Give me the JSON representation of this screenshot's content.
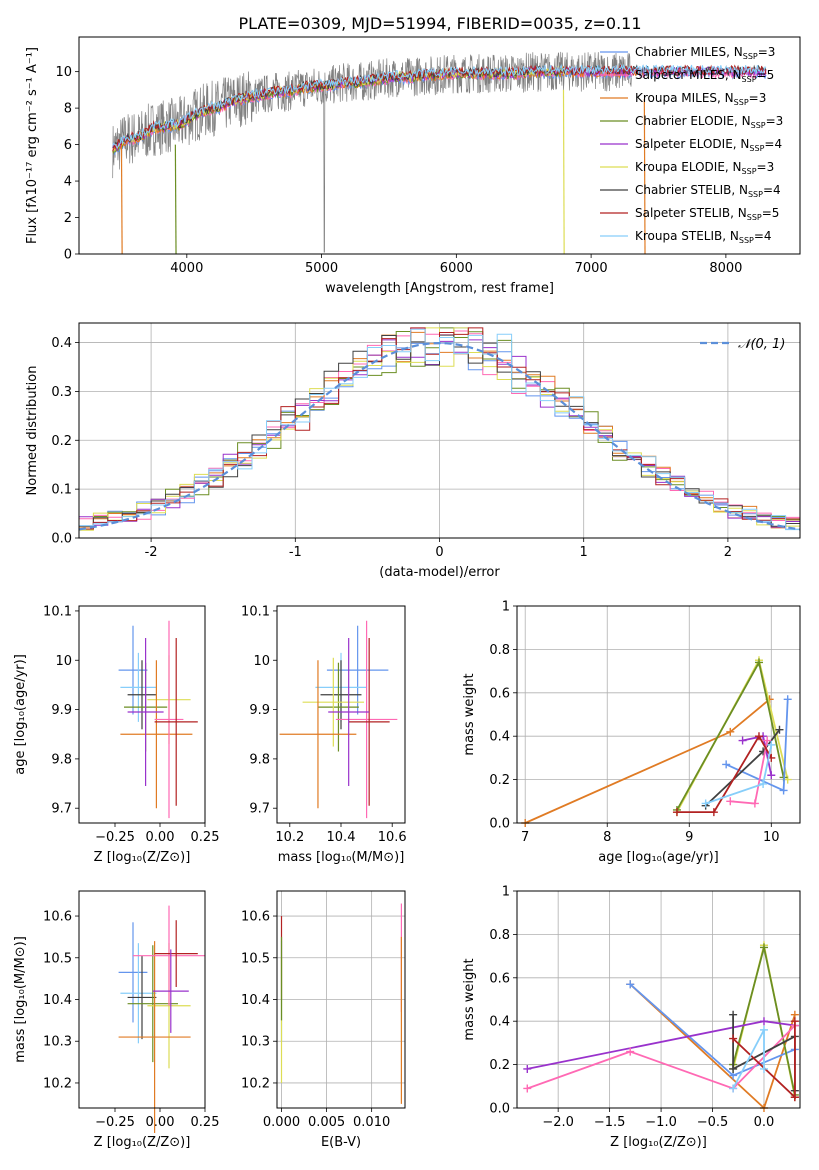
{
  "figure_title": "PLATE=0309, MJD=51994, FIBERID=0035, z=0.11",
  "legend_entries": [
    {
      "label": "Chabrier MILES, N",
      "sub": "SSP",
      "tail": "=3",
      "color": "#6495ed"
    },
    {
      "label": "Salpeter MILES, N",
      "sub": "SSP",
      "tail": "=5",
      "color": "#ff69b4"
    },
    {
      "label": "Kroupa MILES, N",
      "sub": "SSP",
      "tail": "=3",
      "color": "#e07b24"
    },
    {
      "label": "Chabrier ELODIE, N",
      "sub": "SSP",
      "tail": "=3",
      "color": "#6b8e23"
    },
    {
      "label": "Salpeter ELODIE, N",
      "sub": "SSP",
      "tail": "=4",
      "color": "#9932cc"
    },
    {
      "label": "Kroupa ELODIE, N",
      "sub": "SSP",
      "tail": "=3",
      "color": "#dddd55"
    },
    {
      "label": "Chabrier STELIB, N",
      "sub": "SSP",
      "tail": "=4",
      "color": "#404040"
    },
    {
      "label": "Salpeter STELIB, N",
      "sub": "SSP",
      "tail": "=5",
      "color": "#b22222"
    },
    {
      "label": "Kroupa STELIB, N",
      "sub": "SSP",
      "tail": "=4",
      "color": "#87cefa"
    }
  ],
  "chart_data": [
    {
      "id": "spectrum",
      "type": "line",
      "xlabel": "wavelength [Angstrom, rest frame]",
      "ylabel": "Flux [fλ10⁻¹⁷ erg cm⁻² s⁻¹ A⁻¹]",
      "xlim": [
        3200,
        8550
      ],
      "ylim": [
        0,
        11.9
      ],
      "xticks": [
        4000,
        5000,
        6000,
        7000,
        8000
      ],
      "yticks": [
        0,
        2,
        4,
        6,
        8,
        10
      ],
      "grid": false,
      "legend_position": "right",
      "series_model": {
        "x": [
          3450,
          3550,
          3650,
          3750,
          3850,
          3950,
          4050,
          4150,
          4250,
          4350,
          4450,
          4550,
          4650,
          4750,
          4850,
          4950,
          5050,
          5150,
          5250,
          5350,
          5450,
          5550,
          5650,
          5750,
          5850,
          5950,
          6050,
          6150,
          6250,
          6350,
          6450,
          6550,
          6650,
          6750,
          6850,
          6950,
          7050,
          7150,
          7250,
          7350,
          7450,
          7550,
          7650,
          7750,
          7850,
          7950,
          8050,
          8150,
          8300
        ],
        "y": [
          5.7,
          6.3,
          6.4,
          6.9,
          7.0,
          7.1,
          7.6,
          7.9,
          8.1,
          8.4,
          8.6,
          8.7,
          8.9,
          8.9,
          9.1,
          9.2,
          9.2,
          9.4,
          9.4,
          9.5,
          9.6,
          9.7,
          9.7,
          9.8,
          9.8,
          9.9,
          9.9,
          9.9,
          9.9,
          9.9,
          9.9,
          10.0,
          10.0,
          10.0,
          10.0,
          10.0,
          10.0,
          10.0,
          10.0,
          10.0,
          10.0,
          10.0,
          10.0,
          10.0,
          10.0,
          10.0,
          10.0,
          10.0,
          10.0
        ]
      },
      "series_data": {
        "x_range": [
          3450,
          7300
        ],
        "noise": 1.1,
        "note": "observed spectrum (gray)"
      },
      "dips": [
        {
          "x": 3520,
          "y": 0
        },
        {
          "x": 3920,
          "y": 0
        },
        {
          "x": 5020,
          "y": 0
        },
        {
          "x": 6800,
          "y": 0
        },
        {
          "x": 7400,
          "y": 0
        }
      ]
    },
    {
      "id": "residuals",
      "type": "histogram",
      "xlabel": "(data-model)/error",
      "ylabel": "Normed distribution",
      "xlim": [
        -2.5,
        2.5
      ],
      "ylim": [
        0,
        0.44
      ],
      "xticks": [
        -2,
        -1,
        0,
        1,
        2
      ],
      "yticks": [
        0.0,
        0.1,
        0.2,
        0.3,
        0.4
      ],
      "grid": true,
      "legend": {
        "label": "𝒩(0, 1)",
        "position": "top-right"
      },
      "bin_width": 0.1,
      "reference_curve": "gaussian(0,1)"
    },
    {
      "id": "age_vs_Z",
      "type": "errorbar",
      "xlabel": "Z [log₁₀(Z/Z⊙)]",
      "ylabel": "age  [log₁₀(age/yr)]",
      "xlim": [
        -0.45,
        0.25
      ],
      "ylim": [
        9.67,
        10.11
      ],
      "xticks": [
        -0.25,
        0.0,
        0.25
      ],
      "xticklabels": [
        "−0.25",
        "0.00",
        "0.25"
      ],
      "yticks": [
        9.7,
        9.8,
        9.9,
        10.0,
        10.1
      ],
      "points": [
        {
          "x": -0.15,
          "xerr": 0.08,
          "y": 9.98,
          "yerr": 0.09,
          "color": "#6495ed"
        },
        {
          "x": -0.12,
          "xerr": 0.1,
          "y": 9.945,
          "yerr": 0.07,
          "color": "#87cefa"
        },
        {
          "x": -0.1,
          "xerr": 0.08,
          "y": 9.93,
          "yerr": 0.07,
          "color": "#404040"
        },
        {
          "x": -0.08,
          "xerr": 0.12,
          "y": 9.905,
          "yerr": 0.09,
          "color": "#6b8e23"
        },
        {
          "x": 0.05,
          "xerr": 0.12,
          "y": 9.92,
          "yerr": 0.09,
          "color": "#dddd55"
        },
        {
          "x": -0.02,
          "xerr": 0.2,
          "y": 9.85,
          "yerr": 0.15,
          "color": "#e07b24"
        },
        {
          "x": 0.05,
          "xerr": 0.08,
          "y": 9.88,
          "yerr": 0.2,
          "color": "#ff69b4"
        },
        {
          "x": 0.09,
          "xerr": 0.12,
          "y": 9.875,
          "yerr": 0.17,
          "color": "#b22222"
        },
        {
          "x": -0.08,
          "xerr": 0.1,
          "y": 9.895,
          "yerr": 0.15,
          "color": "#9932cc"
        }
      ]
    },
    {
      "id": "age_vs_mass",
      "type": "errorbar",
      "xlabel": "mass [log₁₀(M/M⊙)]",
      "ylabel": "",
      "xlim": [
        10.15,
        10.65
      ],
      "ylim": [
        9.67,
        10.11
      ],
      "xticks": [
        10.2,
        10.4,
        10.6
      ],
      "yticks": [
        9.7,
        9.8,
        9.9,
        10.0,
        10.1
      ],
      "points": [
        {
          "x": 10.465,
          "xerr": 0.12,
          "y": 9.98,
          "yerr": 0.09,
          "color": "#6495ed"
        },
        {
          "x": 10.4,
          "xerr": 0.1,
          "y": 9.945,
          "yerr": 0.07,
          "color": "#87cefa"
        },
        {
          "x": 10.4,
          "xerr": 0.08,
          "y": 9.93,
          "yerr": 0.07,
          "color": "#404040"
        },
        {
          "x": 10.39,
          "xerr": 0.08,
          "y": 9.905,
          "yerr": 0.09,
          "color": "#6b8e23"
        },
        {
          "x": 10.37,
          "xerr": 0.12,
          "y": 9.915,
          "yerr": 0.09,
          "color": "#dddd55"
        },
        {
          "x": 10.31,
          "xerr": 0.15,
          "y": 9.85,
          "yerr": 0.15,
          "color": "#e07b24"
        },
        {
          "x": 10.5,
          "xerr": 0.12,
          "y": 9.88,
          "yerr": 0.2,
          "color": "#ff69b4"
        },
        {
          "x": 10.51,
          "xerr": 0.08,
          "y": 9.875,
          "yerr": 0.17,
          "color": "#b22222"
        },
        {
          "x": 10.43,
          "xerr": 0.08,
          "y": 9.895,
          "yerr": 0.15,
          "color": "#9932cc"
        }
      ]
    },
    {
      "id": "mass_weight_vs_age",
      "type": "line",
      "xlabel": "age  [log₁₀(age/yr)]",
      "ylabel": "mass weight",
      "xlim": [
        6.9,
        10.35
      ],
      "ylim": [
        0,
        1.0
      ],
      "xticks": [
        7,
        8,
        9,
        10
      ],
      "yticks": [
        0.0,
        0.2,
        0.4,
        0.6,
        0.8,
        1.0
      ],
      "grid": true,
      "series": [
        {
          "color": "#e07b24",
          "x": [
            7.0,
            9.5,
            9.98
          ],
          "y": [
            0.0,
            0.42,
            0.57
          ]
        },
        {
          "color": "#dddd55",
          "x": [
            8.85,
            9.85,
            10.2
          ],
          "y": [
            0.05,
            0.75,
            0.2
          ]
        },
        {
          "color": "#6b8e23",
          "x": [
            8.85,
            9.85,
            10.15
          ],
          "y": [
            0.06,
            0.74,
            0.21
          ]
        },
        {
          "color": "#6495ed",
          "x": [
            9.45,
            10.15,
            10.2
          ],
          "y": [
            0.27,
            0.15,
            0.57
          ]
        },
        {
          "color": "#404040",
          "x": [
            9.2,
            9.9,
            10.1
          ],
          "y": [
            0.08,
            0.33,
            0.43
          ]
        },
        {
          "color": "#9932cc",
          "x": [
            9.65,
            9.9,
            10.0
          ],
          "y": [
            0.38,
            0.4,
            0.22
          ]
        },
        {
          "color": "#ff69b4",
          "x": [
            9.5,
            9.8,
            9.95
          ],
          "y": [
            0.1,
            0.09,
            0.38
          ]
        },
        {
          "color": "#b22222",
          "x": [
            8.85,
            9.3,
            9.85,
            10.0
          ],
          "y": [
            0.05,
            0.05,
            0.4,
            0.3
          ]
        },
        {
          "color": "#87cefa",
          "x": [
            9.2,
            9.9,
            10.0
          ],
          "y": [
            0.09,
            0.18,
            0.36
          ]
        }
      ]
    },
    {
      "id": "mass_vs_Z",
      "type": "errorbar",
      "xlabel": "Z [log₁₀(Z/Z⊙)]",
      "ylabel": "mass [log₁₀(M/M⊙)]",
      "xlim": [
        -0.45,
        0.25
      ],
      "ylim": [
        10.14,
        10.66
      ],
      "xticks": [
        -0.25,
        0.0,
        0.25
      ],
      "xticklabels": [
        "−0.25",
        "0.00",
        "0.25"
      ],
      "yticks": [
        10.2,
        10.3,
        10.4,
        10.5,
        10.6
      ],
      "points": [
        {
          "x": -0.15,
          "xerr": 0.08,
          "y": 10.465,
          "yerr": 0.12,
          "color": "#6495ed"
        },
        {
          "x": -0.12,
          "xerr": 0.1,
          "y": 10.415,
          "yerr": 0.12,
          "color": "#87cefa"
        },
        {
          "x": -0.1,
          "xerr": 0.08,
          "y": 10.405,
          "yerr": 0.1,
          "color": "#404040"
        },
        {
          "x": -0.04,
          "xerr": 0.14,
          "y": 10.39,
          "yerr": 0.14,
          "color": "#6b8e23"
        },
        {
          "x": 0.05,
          "xerr": 0.12,
          "y": 10.385,
          "yerr": 0.15,
          "color": "#dddd55"
        },
        {
          "x": -0.03,
          "xerr": 0.2,
          "y": 10.31,
          "yerr": 0.23,
          "color": "#e07b24"
        },
        {
          "x": 0.05,
          "xerr": 0.2,
          "y": 10.505,
          "yerr": 0.12,
          "color": "#ff69b4"
        },
        {
          "x": 0.09,
          "xerr": 0.12,
          "y": 10.51,
          "yerr": 0.08,
          "color": "#b22222"
        },
        {
          "x": 0.06,
          "xerr": 0.1,
          "y": 10.42,
          "yerr": 0.1,
          "color": "#9932cc"
        }
      ]
    },
    {
      "id": "mass_vs_ebv",
      "type": "errorbar",
      "xlabel": "E(B-V)",
      "ylabel": "",
      "xlim": [
        -0.0005,
        0.0137
      ],
      "ylim": [
        10.14,
        10.66
      ],
      "xticks": [
        0.0,
        0.005,
        0.01
      ],
      "xticklabels": [
        "0.000",
        "0.005",
        "0.010"
      ],
      "yticks": [
        10.2,
        10.3,
        10.4,
        10.5,
        10.6
      ],
      "points": [
        {
          "x": 0.0,
          "xerr": 0,
          "y": 10.5,
          "yerr": 0.1,
          "color": "#b22222"
        },
        {
          "x": 0.0,
          "xerr": 0,
          "y": 10.42,
          "yerr": 0.12,
          "color": "#87cefa"
        },
        {
          "x": 0.0,
          "xerr": 0,
          "y": 10.35,
          "yerr": 0.15,
          "color": "#dddd55"
        },
        {
          "x": 0.0,
          "xerr": 0,
          "y": 10.45,
          "yerr": 0.1,
          "color": "#6b8e23"
        },
        {
          "x": 0.0133,
          "xerr": 0,
          "y": 10.5,
          "yerr": 0.13,
          "color": "#ff69b4"
        },
        {
          "x": 0.0133,
          "xerr": 0,
          "y": 10.35,
          "yerr": 0.2,
          "color": "#e07b24"
        }
      ]
    },
    {
      "id": "mass_weight_vs_Z",
      "type": "line",
      "xlabel": "Z [log₁₀(Z/Z⊙)]",
      "ylabel": "mass weight",
      "xlim": [
        -2.4,
        0.35
      ],
      "ylim": [
        0,
        1.0
      ],
      "xticks": [
        -2.0,
        -1.5,
        -1.0,
        -0.5,
        0.0
      ],
      "xticklabels": [
        "−2.0",
        "−1.5",
        "−1.0",
        "−0.5",
        "0.0"
      ],
      "yticks": [
        0.0,
        0.2,
        0.4,
        0.6,
        0.8,
        1.0
      ],
      "grid": true,
      "series": [
        {
          "color": "#e07b24",
          "x": [
            -1.3,
            0.0,
            0.3
          ],
          "y": [
            0.57,
            0.0,
            0.43
          ]
        },
        {
          "color": "#6495ed",
          "x": [
            -1.3,
            -0.3,
            0.3
          ],
          "y": [
            0.57,
            0.15,
            0.27
          ]
        },
        {
          "color": "#dddd55",
          "x": [
            -0.3,
            0.0,
            0.3
          ],
          "y": [
            0.18,
            0.75,
            0.05
          ]
        },
        {
          "color": "#6b8e23",
          "x": [
            -0.3,
            0.0,
            0.3
          ],
          "y": [
            0.2,
            0.74,
            0.06
          ]
        },
        {
          "color": "#9932cc",
          "x": [
            -2.3,
            0.0,
            0.3
          ],
          "y": [
            0.18,
            0.4,
            0.38
          ]
        },
        {
          "color": "#ff69b4",
          "x": [
            -2.3,
            -1.3,
            -0.3,
            0.3
          ],
          "y": [
            0.09,
            0.26,
            0.09,
            0.38
          ]
        },
        {
          "color": "#404040",
          "x": [
            -0.3,
            -0.3,
            0.3,
            0.3
          ],
          "y": [
            0.43,
            0.18,
            0.33,
            0.08
          ]
        },
        {
          "color": "#b22222",
          "x": [
            -0.3,
            0.3,
            0.3,
            0.3
          ],
          "y": [
            0.32,
            0.05,
            0.4,
            0.05
          ]
        },
        {
          "color": "#87cefa",
          "x": [
            -0.3,
            0.0,
            0.0
          ],
          "y": [
            0.09,
            0.36,
            0.18
          ]
        }
      ]
    }
  ]
}
